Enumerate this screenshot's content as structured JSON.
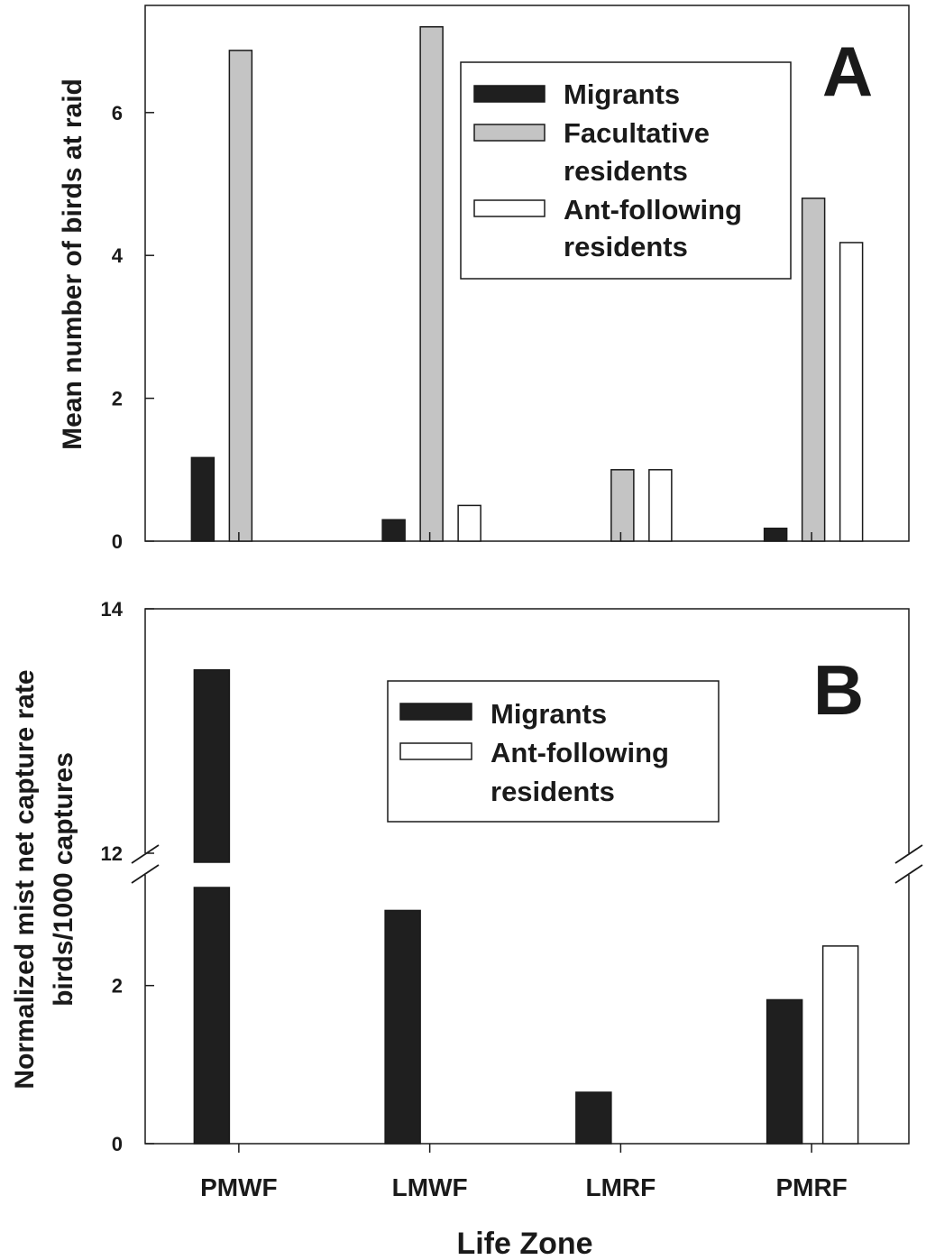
{
  "colors": {
    "migrants": "#1f1f1f",
    "facultative": "#c4c4c4",
    "ant_following": "#ffffff",
    "stroke": "#1a1a1a"
  },
  "chart_data": [
    {
      "type": "bar",
      "panel": "A",
      "ylabel": "Mean number of birds at raid",
      "xlabel": "",
      "ylim": [
        0,
        7.5
      ],
      "yticks": [
        "0",
        "2",
        "4",
        "6"
      ],
      "categories": [
        "PMWF",
        "LMWF",
        "LMRF",
        "PMRF"
      ],
      "series": [
        {
          "name": "Migrants",
          "color": "#1f1f1f",
          "values": [
            1.17,
            0.3,
            0,
            0.18
          ]
        },
        {
          "name": "Facultative residents",
          "color": "#c4c4c4",
          "values": [
            6.87,
            7.2,
            1.0,
            4.8
          ]
        },
        {
          "name": "Ant-following residents",
          "color": "#ffffff",
          "values": [
            0,
            0.5,
            1.0,
            4.18
          ]
        }
      ],
      "legend": {
        "placement": "top-right",
        "entries": [
          {
            "lines": [
              "Migrants"
            ]
          },
          {
            "lines": [
              "Facultative",
              "residents"
            ]
          },
          {
            "lines": [
              "Ant-following",
              "residents"
            ]
          }
        ]
      }
    },
    {
      "type": "bar",
      "panel": "B",
      "ylabel": [
        "Normalized mist net capture rate",
        "birds/1000 captures"
      ],
      "xlabel": "Life Zone",
      "ylim": [
        0,
        14
      ],
      "axis_break": [
        3.4,
        12
      ],
      "yticks": [
        "0",
        "2",
        "12",
        "14"
      ],
      "categories": [
        "PMWF",
        "LMWF",
        "LMRF",
        "PMRF"
      ],
      "series": [
        {
          "name": "Migrants",
          "color": "#1f1f1f",
          "values": [
            13.5,
            2.95,
            0.65,
            1.82
          ]
        },
        {
          "name": "Ant-following residents",
          "color": "#ffffff",
          "values": [
            0,
            0,
            0,
            2.5
          ]
        }
      ],
      "legend": {
        "placement": "top-right",
        "entries": [
          {
            "lines": [
              "Migrants"
            ]
          },
          {
            "lines": [
              "Ant-following",
              "residents"
            ]
          }
        ]
      }
    }
  ]
}
